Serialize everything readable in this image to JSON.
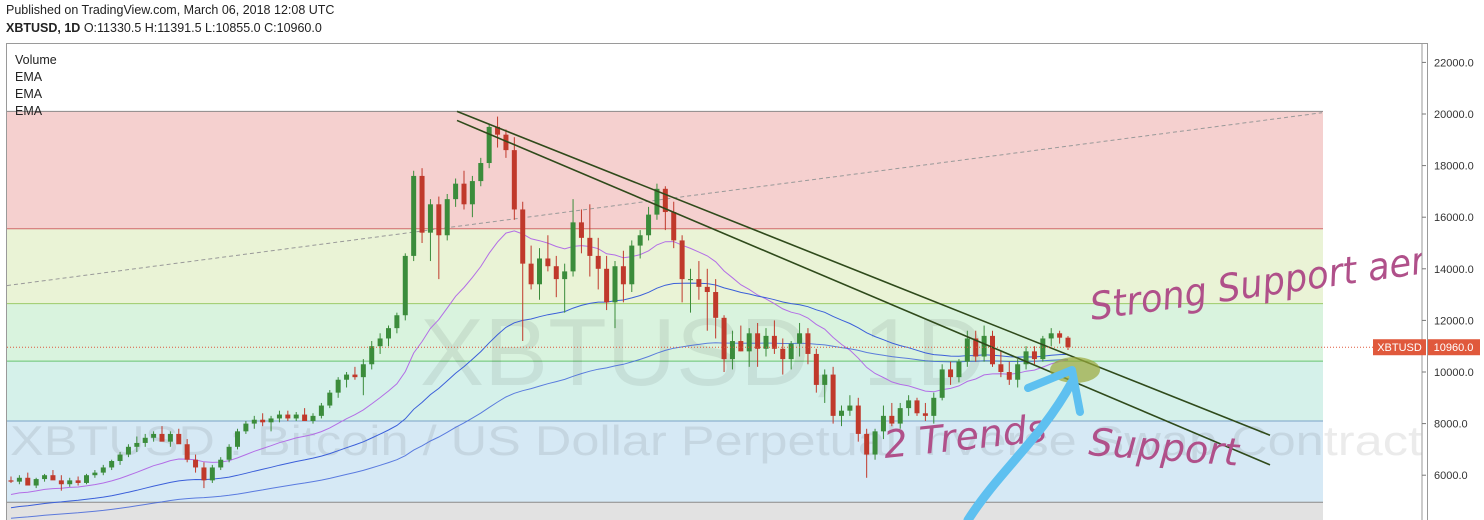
{
  "header": {
    "published": "Published on TradingView.com, March 06, 2018 12:08 UTC",
    "symbol_line": "XBTUSD, 1D",
    "o_label": "O:",
    "o_value": "11330.5",
    "h_label": "H:",
    "h_value": "11391.5",
    "l_label": "L:",
    "l_value": "10855.0",
    "c_label": "C:",
    "c_value": "10960.0"
  },
  "indicators": [
    "Volume",
    "EMA",
    "EMA",
    "EMA"
  ],
  "watermark": {
    "big": "XBTUSD, 1D",
    "long": "XBTUSD : Bitcoin / US Dollar Perpetual Inverse Swap Contract"
  },
  "price_tag": {
    "symbol": "XBTUSD",
    "value": "10960.0"
  },
  "annotations": {
    "strong_support": "Strong Support aera",
    "two_trends": "2 Trends",
    "support": "Support"
  },
  "colors": {
    "up": "#3b8c3b",
    "down": "#c0392b",
    "ema_fast": "#b36ee6",
    "ema_slow": "#3b5fd9",
    "trendline": "#2f4a1b",
    "tag": "#e0593c",
    "handwriting": "#b0508a",
    "arrow": "#5ec0f0",
    "zone_red": "#f5d0cf",
    "zone_yellow": "#eaf3d6",
    "zone_green": "#d9f3de",
    "zone_teal": "#d5f1ea",
    "zone_blue": "#d6e9f5"
  },
  "chart_data": {
    "type": "candlestick",
    "y_ticks": [
      "22000.0",
      "20000.0",
      "18000.0",
      "16000.0",
      "14000.0",
      "12000.0",
      "10000.0",
      "8000.0",
      "6000.0"
    ],
    "ylim": [
      4800,
      22500
    ],
    "fib_levels": [
      20100,
      15550,
      12650,
      10420,
      8100,
      4950
    ],
    "trendlines": [
      {
        "x1": 450,
        "y1": 20100,
        "x2": 1263,
        "y2": 7550
      },
      {
        "x1": 450,
        "y1": 19750,
        "x2": 1263,
        "y2": 6400
      }
    ],
    "dashed_trendline": {
      "x1": 0,
      "y1": 13350,
      "x2": 1315,
      "y2": 20050
    },
    "candles_ohlc": [
      [
        5800,
        5950,
        5700,
        5750
      ],
      [
        5750,
        6000,
        5650,
        5900
      ],
      [
        5900,
        6100,
        5700,
        5600
      ],
      [
        5600,
        5900,
        5500,
        5850
      ],
      [
        5850,
        6050,
        5750,
        6000
      ],
      [
        6000,
        6200,
        5900,
        5800
      ],
      [
        5800,
        6000,
        5400,
        5650
      ],
      [
        5650,
        5900,
        5550,
        5800
      ],
      [
        5800,
        5950,
        5600,
        5700
      ],
      [
        5700,
        6050,
        5650,
        6000
      ],
      [
        6000,
        6200,
        5900,
        6100
      ],
      [
        6100,
        6400,
        6000,
        6300
      ],
      [
        6300,
        6600,
        6200,
        6550
      ],
      [
        6550,
        6900,
        6400,
        6800
      ],
      [
        6800,
        7200,
        6700,
        7100
      ],
      [
        7100,
        7500,
        6900,
        7250
      ],
      [
        7250,
        7600,
        7100,
        7450
      ],
      [
        7450,
        7700,
        7300,
        7600
      ],
      [
        7600,
        7900,
        7400,
        7300
      ],
      [
        7300,
        7700,
        7100,
        7600
      ],
      [
        7600,
        7800,
        7300,
        7200
      ],
      [
        7200,
        7400,
        6500,
        6600
      ],
      [
        6600,
        6800,
        6100,
        6300
      ],
      [
        6300,
        6500,
        5500,
        5800
      ],
      [
        5800,
        6400,
        5700,
        6300
      ],
      [
        6300,
        6700,
        6200,
        6600
      ],
      [
        6600,
        7200,
        6500,
        7100
      ],
      [
        7100,
        7800,
        7000,
        7700
      ],
      [
        7700,
        8100,
        7600,
        8000
      ],
      [
        8000,
        8300,
        7800,
        8150
      ],
      [
        8150,
        8400,
        7900,
        8050
      ],
      [
        8050,
        8300,
        7700,
        8200
      ],
      [
        8200,
        8500,
        8050,
        8350
      ],
      [
        8350,
        8500,
        8100,
        8200
      ],
      [
        8200,
        8450,
        8100,
        8350
      ],
      [
        8350,
        8600,
        8150,
        8100
      ],
      [
        8100,
        8400,
        8000,
        8300
      ],
      [
        8300,
        8800,
        8200,
        8700
      ],
      [
        8700,
        9300,
        8600,
        9200
      ],
      [
        9200,
        9800,
        9000,
        9700
      ],
      [
        9700,
        10000,
        9400,
        9900
      ],
      [
        9900,
        10200,
        9700,
        9800
      ],
      [
        9800,
        10500,
        9100,
        10300
      ],
      [
        10300,
        11200,
        10100,
        11000
      ],
      [
        11000,
        11500,
        10700,
        11300
      ],
      [
        11300,
        11800,
        11000,
        11700
      ],
      [
        11700,
        12300,
        11500,
        12200
      ],
      [
        12200,
        14600,
        12000,
        14500
      ],
      [
        14500,
        17800,
        14300,
        17600
      ],
      [
        17600,
        17900,
        15000,
        15400
      ],
      [
        15400,
        16700,
        14300,
        16500
      ],
      [
        16500,
        16800,
        13600,
        15300
      ],
      [
        15300,
        16900,
        15100,
        16700
      ],
      [
        16700,
        17500,
        16400,
        17300
      ],
      [
        17300,
        17800,
        16300,
        16500
      ],
      [
        16500,
        17600,
        16000,
        17400
      ],
      [
        17400,
        18300,
        17200,
        18100
      ],
      [
        18100,
        19600,
        17900,
        19500
      ],
      [
        19500,
        19900,
        18700,
        19200
      ],
      [
        19200,
        19400,
        18300,
        18600
      ],
      [
        18600,
        19100,
        15900,
        16300
      ],
      [
        16300,
        16600,
        11200,
        14200
      ],
      [
        14200,
        14900,
        13200,
        13400
      ],
      [
        13400,
        14800,
        12800,
        14400
      ],
      [
        14400,
        15300,
        13900,
        14100
      ],
      [
        14100,
        14500,
        12900,
        13600
      ],
      [
        13600,
        14200,
        12300,
        13900
      ],
      [
        13900,
        16700,
        13700,
        15800
      ],
      [
        15800,
        16300,
        14600,
        15200
      ],
      [
        15200,
        16500,
        13700,
        14500
      ],
      [
        14500,
        15200,
        13200,
        14000
      ],
      [
        14000,
        14500,
        12400,
        12700
      ],
      [
        12700,
        14300,
        11700,
        14100
      ],
      [
        14100,
        14700,
        12700,
        13400
      ],
      [
        13400,
        15100,
        13100,
        14900
      ],
      [
        14900,
        15500,
        14400,
        15300
      ],
      [
        15300,
        16400,
        15100,
        16100
      ],
      [
        16100,
        17300,
        15900,
        17100
      ],
      [
        17100,
        17200,
        15500,
        16200
      ],
      [
        16200,
        16600,
        14800,
        15100
      ],
      [
        15100,
        15300,
        12700,
        13600
      ],
      [
        13600,
        14000,
        12300,
        13600
      ],
      [
        13600,
        14300,
        12800,
        13300
      ],
      [
        13300,
        14000,
        11600,
        13100
      ],
      [
        13100,
        13600,
        11300,
        12100
      ],
      [
        12100,
        12200,
        10000,
        10500
      ],
      [
        10500,
        11600,
        10100,
        11200
      ],
      [
        11200,
        11800,
        10800,
        10800
      ],
      [
        10800,
        11700,
        10200,
        11500
      ],
      [
        11500,
        11900,
        10200,
        10900
      ],
      [
        10900,
        11700,
        10600,
        11400
      ],
      [
        11400,
        12000,
        10700,
        10900
      ],
      [
        10900,
        11300,
        9900,
        10500
      ],
      [
        10500,
        11200,
        10100,
        11100
      ],
      [
        11100,
        11900,
        10600,
        11500
      ],
      [
        11500,
        11700,
        10300,
        10700
      ],
      [
        10700,
        10900,
        9200,
        9500
      ],
      [
        9500,
        10100,
        8800,
        9900
      ],
      [
        9900,
        10200,
        8000,
        8300
      ],
      [
        8300,
        8700,
        7900,
        8500
      ],
      [
        8500,
        9100,
        8300,
        8700
      ],
      [
        8700,
        9000,
        7300,
        7600
      ],
      [
        7600,
        7800,
        5900,
        6800
      ],
      [
        6800,
        7800,
        6600,
        7700
      ],
      [
        7700,
        8700,
        7400,
        8300
      ],
      [
        8300,
        8800,
        7900,
        8000
      ],
      [
        8000,
        8800,
        7800,
        8600
      ],
      [
        8600,
        9100,
        8300,
        8900
      ],
      [
        8900,
        9000,
        8300,
        8400
      ],
      [
        8400,
        8800,
        8100,
        8300
      ],
      [
        8300,
        9200,
        8000,
        9000
      ],
      [
        9000,
        10300,
        8900,
        10100
      ],
      [
        10100,
        10400,
        9500,
        9800
      ],
      [
        9800,
        10500,
        9600,
        10400
      ],
      [
        10400,
        11600,
        10200,
        11300
      ],
      [
        11300,
        11600,
        10400,
        10600
      ],
      [
        10600,
        11800,
        10400,
        11400
      ],
      [
        11400,
        11600,
        10200,
        10300
      ],
      [
        10300,
        10800,
        9800,
        10000
      ],
      [
        10000,
        10400,
        9500,
        9700
      ],
      [
        9700,
        10500,
        9400,
        10300
      ],
      [
        10300,
        11000,
        10100,
        10800
      ],
      [
        10800,
        11000,
        10300,
        10500
      ],
      [
        10500,
        11400,
        10400,
        11300
      ],
      [
        11300,
        11700,
        11000,
        11500
      ],
      [
        11500,
        11600,
        11100,
        11330
      ],
      [
        11330,
        11391,
        10855,
        10960
      ]
    ]
  }
}
